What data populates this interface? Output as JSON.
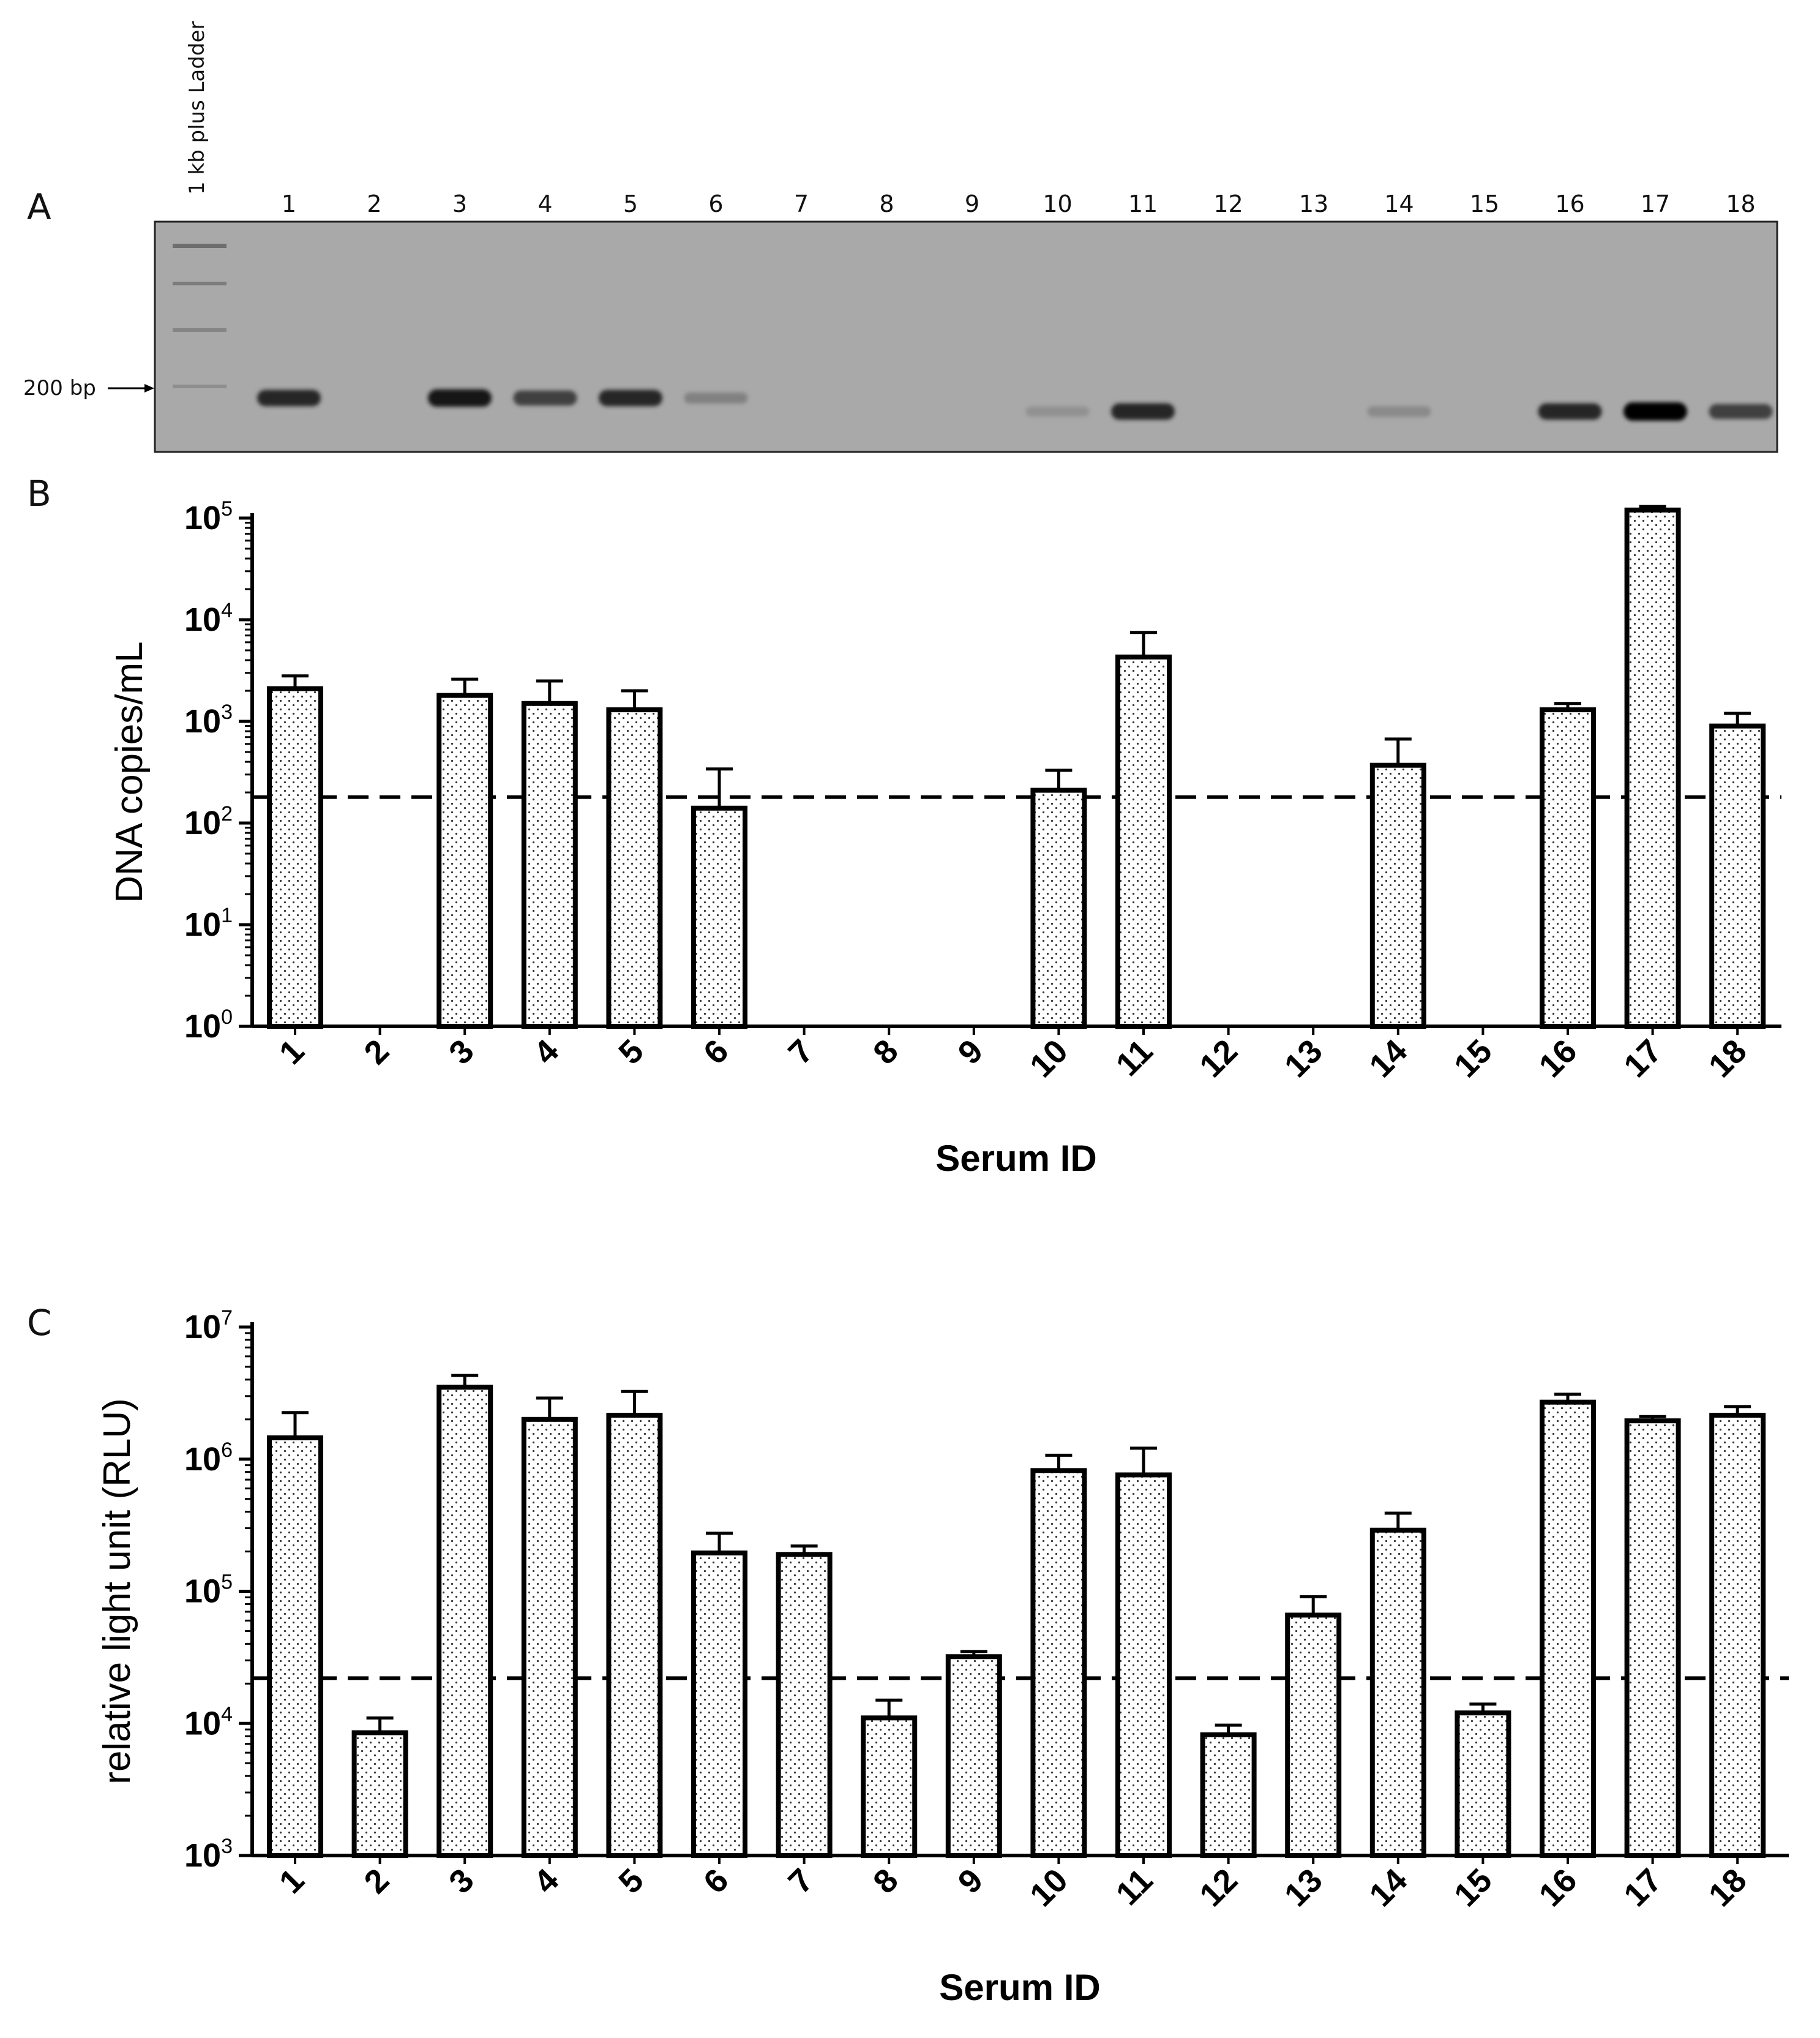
{
  "panel_a": {
    "letter": "A",
    "ladder_label": "1 kb plus Ladder",
    "marker_label": "200 bp",
    "lane_labels": [
      "1",
      "2",
      "3",
      "4",
      "5",
      "6",
      "7",
      "8",
      "9",
      "10",
      "11",
      "12",
      "13",
      "14",
      "15",
      "16",
      "17",
      "18"
    ],
    "band_intensity": [
      0.8,
      0,
      0.9,
      0.65,
      0.8,
      0.25,
      0,
      0,
      0,
      0.15,
      0.8,
      0,
      0,
      0.2,
      0,
      0.8,
      1.0,
      0.65
    ],
    "band_offset_lanes": [
      0.0,
      0,
      0.0,
      0.0,
      0.0,
      0.0,
      0,
      0,
      0,
      0.55,
      0.55,
      0,
      0,
      0.55,
      0,
      0.55,
      0.55,
      0.55
    ]
  },
  "chart_data": [
    {
      "panel": "B",
      "type": "bar",
      "yscale": "log",
      "categories": [
        "1",
        "2",
        "3",
        "4",
        "5",
        "6",
        "7",
        "8",
        "9",
        "10",
        "11",
        "12",
        "13",
        "14",
        "15",
        "16",
        "17",
        "18"
      ],
      "values": [
        2100,
        null,
        1800,
        1500,
        1300,
        140,
        null,
        null,
        null,
        210,
        4300,
        null,
        null,
        370,
        null,
        1300,
        120000,
        900
      ],
      "errors": [
        700,
        null,
        800,
        1000,
        700,
        200,
        null,
        null,
        null,
        120,
        3200,
        null,
        null,
        300,
        null,
        200,
        10000,
        300
      ],
      "threshold": 180,
      "xlabel": "Serum ID",
      "ylabel": "DNA copies/mL",
      "ylim_exp": [
        0,
        5
      ],
      "yticks": [
        {
          "base": "10",
          "exp": "0"
        },
        {
          "base": "10",
          "exp": "1"
        },
        {
          "base": "10",
          "exp": "2"
        },
        {
          "base": "10",
          "exp": "3"
        },
        {
          "base": "10",
          "exp": "4"
        },
        {
          "base": "10",
          "exp": "5"
        }
      ]
    },
    {
      "panel": "C",
      "type": "bar",
      "yscale": "log",
      "categories": [
        "1",
        "2",
        "3",
        "4",
        "5",
        "6",
        "7",
        "8",
        "9",
        "10",
        "11",
        "12",
        "13",
        "14",
        "15",
        "16",
        "17",
        "18"
      ],
      "values": [
        1450000,
        8500,
        3500000,
        2000000,
        2150000,
        195000,
        190000,
        11000,
        32000,
        820000,
        760000,
        8200,
        66000,
        290000,
        12000,
        2700000,
        1950000,
        2150000
      ],
      "errors": [
        800000,
        2500,
        800000,
        900000,
        1100000,
        80000,
        30000,
        4000,
        3000,
        250000,
        450000,
        1500,
        25000,
        100000,
        2000,
        400000,
        150000,
        350000
      ],
      "threshold": 22000,
      "xlabel": "Serum ID",
      "ylabel": "relative light unit (RLU)",
      "ylim_exp": [
        3,
        7
      ],
      "yticks": [
        {
          "base": "10",
          "exp": "3"
        },
        {
          "base": "10",
          "exp": "4"
        },
        {
          "base": "10",
          "exp": "5"
        },
        {
          "base": "10",
          "exp": "6"
        },
        {
          "base": "10",
          "exp": "7"
        }
      ]
    }
  ]
}
